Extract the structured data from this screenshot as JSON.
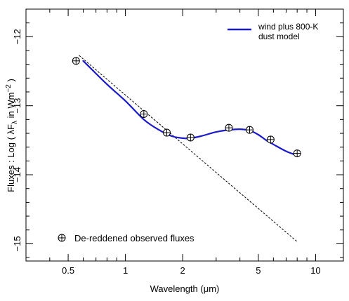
{
  "chart_data": {
    "type": "line",
    "xlabel_prefix": "Wavelength (",
    "xlabel_unit": "μm",
    "xlabel_suffix": ")",
    "ylabel_prefix": "Fluxes : Log ( λF",
    "ylabel_sub": "λ",
    "ylabel_mid": " in Wm",
    "ylabel_sup": "−2",
    "ylabel_suffix": " )",
    "x_scale": "log",
    "xlim": [
      0.3,
      14
    ],
    "ylim": [
      -11.6,
      -15.25
    ],
    "y_axis_inverted": true,
    "grid": false,
    "x_tick_labels": [
      {
        "value": 0.5,
        "label": "0.5"
      },
      {
        "value": 1,
        "label": "1"
      },
      {
        "value": 2,
        "label": "2"
      },
      {
        "value": 5,
        "label": "5"
      },
      {
        "value": 10,
        "label": "10"
      }
    ],
    "x_minor_ticks": [
      0.3,
      0.4,
      0.6,
      0.7,
      0.8,
      0.9,
      3,
      4,
      6,
      7,
      8,
      9
    ],
    "y_tick_labels": [
      {
        "value": -12,
        "label": "−12"
      },
      {
        "value": -13,
        "label": "−13"
      },
      {
        "value": -14,
        "label": "−14"
      },
      {
        "value": -15,
        "label": "−15"
      }
    ],
    "y_minor_step": 0.2,
    "series": [
      {
        "name": "wind plus 800-K dust model",
        "style": "solid",
        "color": "#1a1acc",
        "x": [
          0.6,
          0.8,
          1.0,
          1.25,
          1.5,
          1.75,
          2.0,
          2.2,
          2.5,
          3.0,
          3.5,
          4.0,
          4.5,
          5.0,
          5.5,
          6.0,
          7.0,
          8.0
        ],
        "y": [
          -12.35,
          -12.69,
          -12.93,
          -13.2,
          -13.35,
          -13.44,
          -13.47,
          -13.47,
          -13.44,
          -13.38,
          -13.35,
          -13.34,
          -13.36,
          -13.42,
          -13.5,
          -13.56,
          -13.66,
          -13.72
        ]
      },
      {
        "name": "",
        "style": "dashed",
        "color": "#000000",
        "x": [
          0.57,
          8.0
        ],
        "y": [
          -12.27,
          -14.97
        ]
      },
      {
        "name": "De-reddened observed fluxes",
        "style": "markers",
        "marker": "circle-plus",
        "color": "#000000",
        "x": [
          0.55,
          1.25,
          1.65,
          2.2,
          3.5,
          4.5,
          5.8,
          8.0
        ],
        "y": [
          -12.35,
          -13.12,
          -13.39,
          -13.46,
          -13.32,
          -13.35,
          -13.49,
          -13.69
        ]
      }
    ],
    "legend": {
      "line_label_1": "wind plus 800-K",
      "line_label_2": "dust model",
      "line_placement": "top-right",
      "marker_label": "De-reddened observed fluxes",
      "marker_placement": "bottom-left"
    }
  }
}
